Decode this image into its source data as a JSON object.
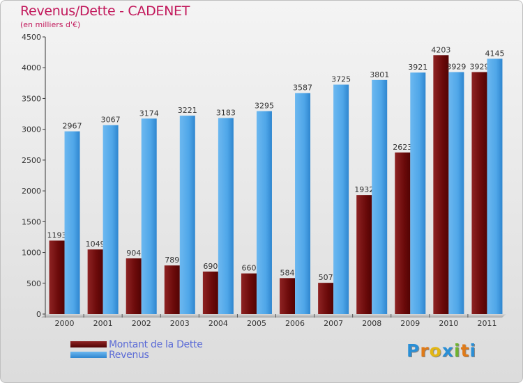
{
  "chart_data": {
    "type": "bar",
    "title": "Revenus/Dette - CADENET",
    "subtitle": "(en milliers d'€)",
    "categories": [
      "2000",
      "2001",
      "2002",
      "2003",
      "2004",
      "2005",
      "2006",
      "2007",
      "2008",
      "2009",
      "2010",
      "2011"
    ],
    "series": [
      {
        "name": "Montant de la Dette",
        "color": "#6b0a0a",
        "values": [
          1193,
          1049,
          904,
          789,
          690,
          660,
          584,
          507,
          1932,
          2623,
          4203,
          3929
        ]
      },
      {
        "name": "Revenus",
        "color": "#4fa6e8",
        "values": [
          2967,
          3067,
          3174,
          3221,
          3183,
          3295,
          3587,
          3725,
          3801,
          3921,
          3929,
          4145
        ]
      }
    ],
    "ylim": [
      0,
      4500
    ],
    "yticks": [
      0,
      500,
      1000,
      1500,
      2000,
      2500,
      3000,
      3500,
      4000,
      4500
    ],
    "grid": false,
    "legend_position": "bottom-left"
  },
  "logo": {
    "letters": [
      "P",
      "r",
      "o",
      "x",
      "i",
      "t",
      "i"
    ],
    "colors": [
      "#2a8fd6",
      "#e07a17",
      "#e2b614",
      "#2a8fd6",
      "#6fb32f",
      "#e07a17",
      "#2a8fd6"
    ]
  }
}
